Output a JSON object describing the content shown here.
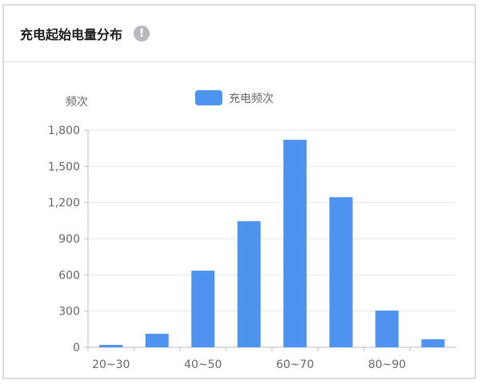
{
  "header": {
    "title": "充电起始电量分布",
    "info_icon": "exclamation-circle-icon"
  },
  "chart_data": {
    "type": "bar",
    "title": "",
    "ylabel": "频次",
    "xlabel": "",
    "categories": [
      "20~30",
      "",
      "40~50",
      "",
      "60~70",
      "",
      "80~90",
      ""
    ],
    "series": [
      {
        "name": "充电频次",
        "values": [
          20,
          112,
          635,
          1045,
          1720,
          1244,
          304,
          66
        ],
        "color": "#4e93f0"
      }
    ],
    "ylim": [
      0,
      1800
    ],
    "yticks": [
      "0",
      "300",
      "600",
      "900",
      "1,200",
      "1,500",
      "1,800"
    ],
    "grid": true,
    "legend": "top-center"
  }
}
